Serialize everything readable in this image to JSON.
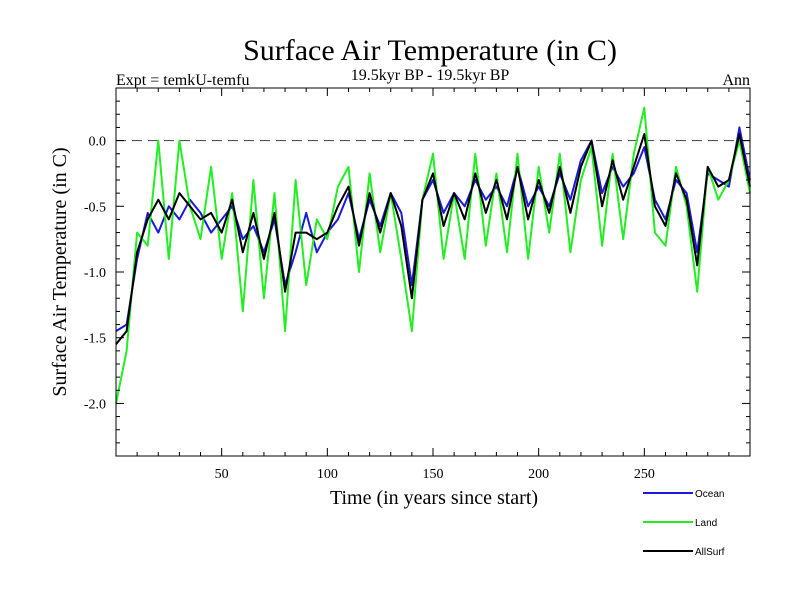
{
  "chart_data": {
    "type": "line",
    "title": "Surface Air Temperature (in C)",
    "subtitle": "19.5kyr BP - 19.5kyr BP",
    "left_label": "Expt = temkU-temfu",
    "right_label": "Ann",
    "xlabel": "Time (in years since start)",
    "ylabel": "Surface Air Temperature (in C)",
    "xlim": [
      0,
      300
    ],
    "ylim": [
      -2.4,
      0.4
    ],
    "x_ticks": [
      50,
      100,
      150,
      200,
      250
    ],
    "y_ticks": [
      -2.0,
      -1.5,
      -1.0,
      -0.5,
      0.0
    ],
    "x_tick_labels": [
      "50",
      "100",
      "150",
      "200",
      "250"
    ],
    "y_tick_labels": [
      "-2.0",
      "-1.5",
      "-1.0",
      "-0.5",
      "0.0"
    ],
    "reference_line": 0.0,
    "legend_position": "bottom-right, outside plot",
    "series": [
      {
        "name": "Ocean",
        "color": "#1a1adc",
        "x": [
          0,
          5,
          10,
          15,
          20,
          25,
          30,
          35,
          40,
          45,
          50,
          55,
          60,
          65,
          70,
          75,
          80,
          85,
          90,
          95,
          100,
          105,
          110,
          115,
          120,
          125,
          130,
          135,
          140,
          145,
          150,
          155,
          160,
          165,
          170,
          175,
          180,
          185,
          190,
          195,
          200,
          205,
          210,
          215,
          220,
          225,
          230,
          235,
          240,
          245,
          250,
          255,
          260,
          265,
          270,
          275,
          280,
          285,
          290,
          295,
          300
        ],
        "values": [
          -1.45,
          -1.4,
          -0.9,
          -0.55,
          -0.7,
          -0.5,
          -0.6,
          -0.45,
          -0.55,
          -0.7,
          -0.6,
          -0.5,
          -0.75,
          -0.65,
          -0.85,
          -0.6,
          -1.1,
          -0.85,
          -0.55,
          -0.85,
          -0.7,
          -0.6,
          -0.4,
          -0.75,
          -0.45,
          -0.65,
          -0.4,
          -0.55,
          -1.1,
          -0.45,
          -0.3,
          -0.55,
          -0.4,
          -0.5,
          -0.3,
          -0.45,
          -0.35,
          -0.5,
          -0.2,
          -0.5,
          -0.35,
          -0.5,
          -0.25,
          -0.45,
          -0.15,
          0.0,
          -0.4,
          -0.2,
          -0.35,
          -0.25,
          -0.05,
          -0.45,
          -0.6,
          -0.3,
          -0.4,
          -0.85,
          -0.25,
          -0.3,
          -0.35,
          0.1,
          -0.3
        ]
      },
      {
        "name": "Land",
        "color": "#22ee22",
        "x": [
          0,
          5,
          10,
          15,
          20,
          25,
          30,
          35,
          40,
          45,
          50,
          55,
          60,
          65,
          70,
          75,
          80,
          85,
          90,
          95,
          100,
          105,
          110,
          115,
          120,
          125,
          130,
          135,
          140,
          145,
          150,
          155,
          160,
          165,
          170,
          175,
          180,
          185,
          190,
          195,
          200,
          205,
          210,
          215,
          220,
          225,
          230,
          235,
          240,
          245,
          250,
          255,
          260,
          265,
          270,
          275,
          280,
          285,
          290,
          295,
          300
        ],
        "values": [
          -2.0,
          -1.6,
          -0.7,
          -0.8,
          0.0,
          -0.9,
          0.0,
          -0.5,
          -0.75,
          -0.2,
          -0.9,
          -0.4,
          -1.3,
          -0.3,
          -1.2,
          -0.4,
          -1.45,
          -0.3,
          -1.1,
          -0.6,
          -0.75,
          -0.35,
          -0.2,
          -1.0,
          -0.25,
          -0.85,
          -0.4,
          -0.9,
          -1.45,
          -0.45,
          -0.1,
          -0.9,
          -0.4,
          -0.9,
          -0.1,
          -0.8,
          -0.25,
          -0.85,
          -0.1,
          -0.9,
          -0.2,
          -0.7,
          -0.1,
          -0.85,
          -0.3,
          -0.05,
          -0.8,
          -0.1,
          -0.75,
          -0.1,
          0.25,
          -0.7,
          -0.8,
          -0.2,
          -0.5,
          -1.15,
          -0.2,
          -0.45,
          -0.3,
          0.0,
          -0.4
        ]
      },
      {
        "name": "AllSurf",
        "color": "#000000",
        "x": [
          0,
          5,
          10,
          15,
          20,
          25,
          30,
          35,
          40,
          45,
          50,
          55,
          60,
          65,
          70,
          75,
          80,
          85,
          90,
          95,
          100,
          105,
          110,
          115,
          120,
          125,
          130,
          135,
          140,
          145,
          150,
          155,
          160,
          165,
          170,
          175,
          180,
          185,
          190,
          195,
          200,
          205,
          210,
          215,
          220,
          225,
          230,
          235,
          240,
          245,
          250,
          255,
          260,
          265,
          270,
          275,
          280,
          285,
          290,
          295,
          300
        ],
        "values": [
          -1.55,
          -1.45,
          -0.85,
          -0.6,
          -0.45,
          -0.6,
          -0.4,
          -0.5,
          -0.6,
          -0.55,
          -0.7,
          -0.45,
          -0.85,
          -0.55,
          -0.9,
          -0.55,
          -1.15,
          -0.7,
          -0.7,
          -0.75,
          -0.7,
          -0.5,
          -0.35,
          -0.8,
          -0.4,
          -0.7,
          -0.4,
          -0.65,
          -1.2,
          -0.45,
          -0.25,
          -0.65,
          -0.4,
          -0.6,
          -0.25,
          -0.55,
          -0.3,
          -0.6,
          -0.2,
          -0.6,
          -0.3,
          -0.55,
          -0.2,
          -0.55,
          -0.2,
          0.0,
          -0.5,
          -0.15,
          -0.45,
          -0.2,
          0.05,
          -0.5,
          -0.65,
          -0.25,
          -0.45,
          -0.95,
          -0.2,
          -0.35,
          -0.3,
          0.05,
          -0.35
        ]
      }
    ]
  }
}
